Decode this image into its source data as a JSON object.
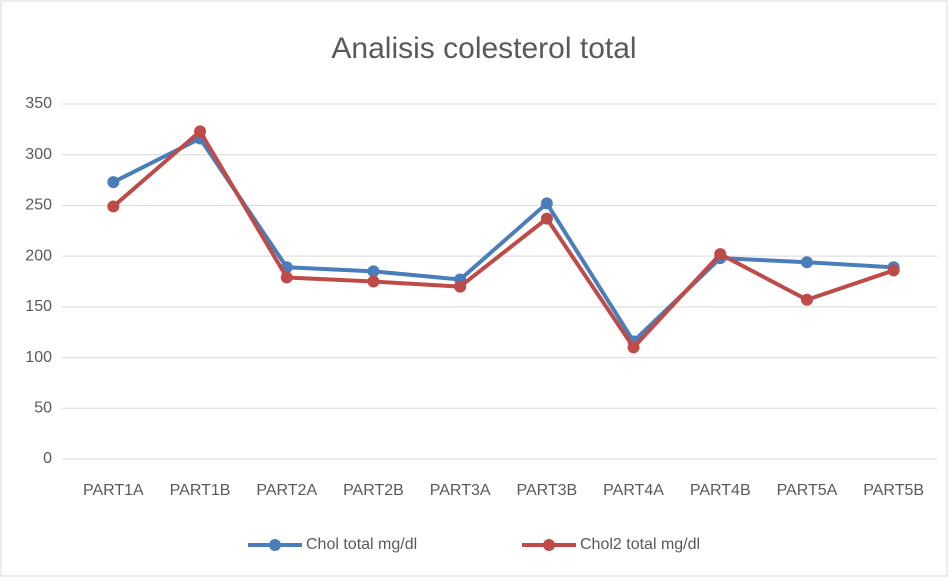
{
  "chart_data": {
    "type": "line",
    "title": "Analisis colesterol total",
    "categories": [
      "PART1A",
      "PART1B",
      "PART2A",
      "PART2B",
      "PART3A",
      "PART3B",
      "PART4A",
      "PART4B",
      "PART5A",
      "PART5B"
    ],
    "series": [
      {
        "name": "Chol total mg/dl",
        "color": "#4a7ebb",
        "values": [
          273,
          316,
          189,
          185,
          177,
          252,
          116,
          198,
          194,
          189
        ]
      },
      {
        "name": "Chol2 total mg/dl",
        "color": "#be4b48",
        "values": [
          249,
          323,
          179,
          175,
          170,
          237,
          110,
          202,
          157,
          186
        ]
      }
    ],
    "ylim": [
      0,
      350
    ],
    "yticks": [
      0,
      50,
      100,
      150,
      200,
      250,
      300,
      350
    ],
    "grid": true,
    "legend": "bottom"
  }
}
